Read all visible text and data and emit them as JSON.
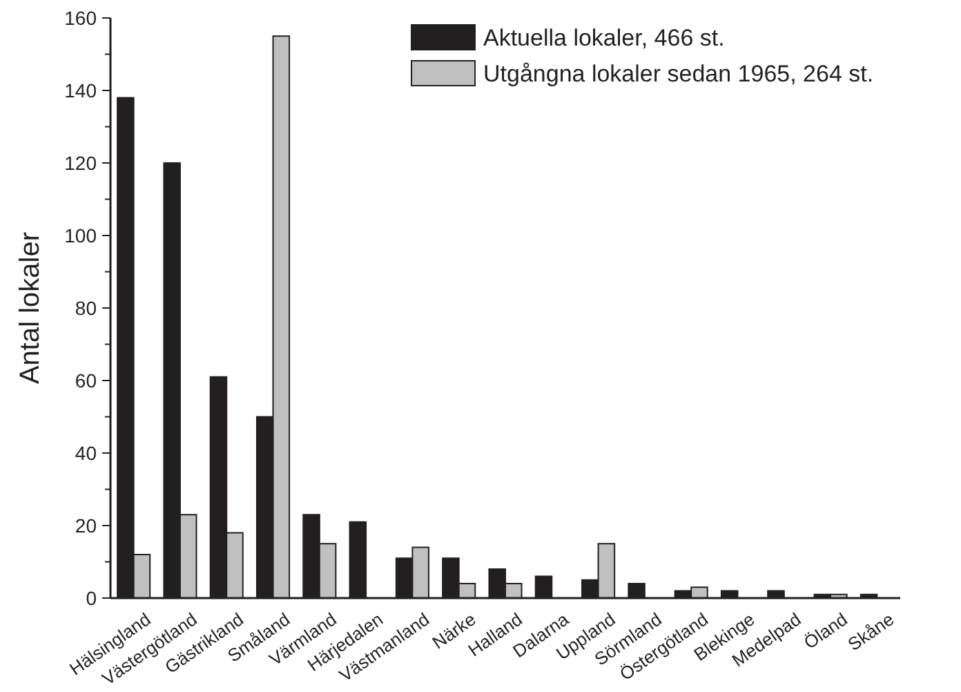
{
  "chart_data": {
    "type": "bar",
    "ylabel": "Antal lokaler",
    "categories": [
      "Hälsingland",
      "Västergötland",
      "Gästrikland",
      "Småland",
      "Värmland",
      "Härjedalen",
      "Västmanland",
      "Närke",
      "Halland",
      "Dalarna",
      "Uppland",
      "Sörmland",
      "Östergötland",
      "Blekinge",
      "Medelpad",
      "Öland",
      "Skåne"
    ],
    "series": [
      {
        "name": "Aktuella lokaler, 466 st.",
        "color": "#231f20",
        "values": [
          138,
          120,
          61,
          50,
          23,
          21,
          11,
          11,
          8,
          6,
          5,
          4,
          2,
          2,
          2,
          1,
          1
        ]
      },
      {
        "name": "Utgångna lokaler sedan 1965, 264 st.",
        "color": "#c0c0c0",
        "values": [
          12,
          23,
          18,
          155,
          15,
          0,
          14,
          4,
          4,
          0,
          15,
          0,
          3,
          0,
          0,
          1,
          0
        ]
      }
    ],
    "ylim": [
      0,
      160
    ],
    "yticks": [
      0,
      20,
      40,
      60,
      80,
      100,
      120,
      140,
      160
    ],
    "grid": false,
    "legend": "top right"
  }
}
